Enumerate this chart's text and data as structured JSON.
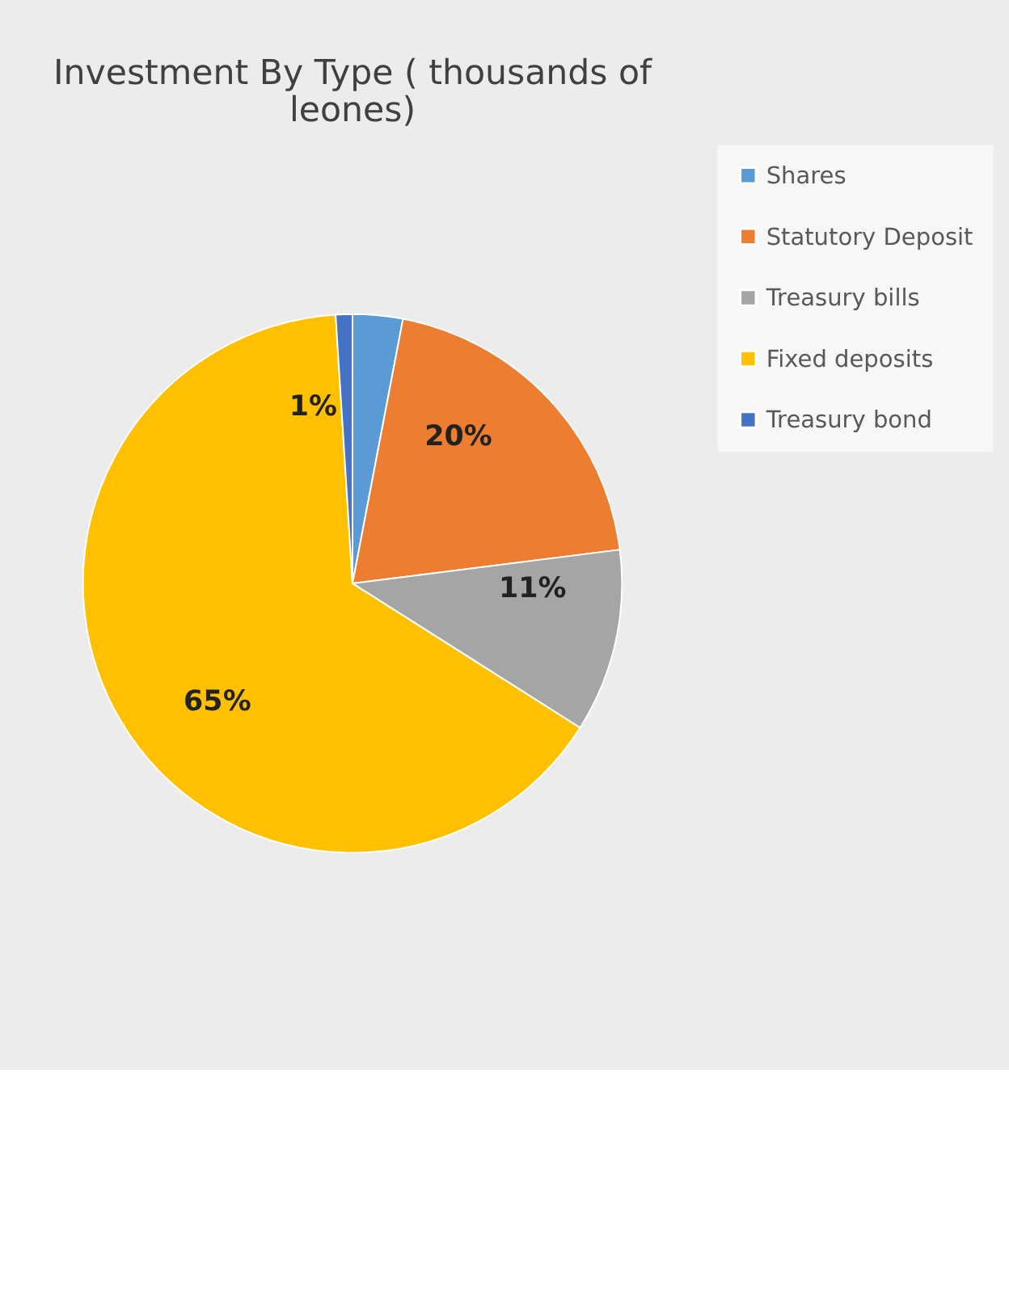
{
  "chart_data": {
    "type": "pie",
    "title": "Investment By Type ( thousands of leones)",
    "categories": [
      "Shares",
      "Statutory Deposit",
      "Treasury bills",
      "Fixed deposits",
      "Treasury bond"
    ],
    "values": [
      3,
      20,
      11,
      65,
      1
    ],
    "colors": [
      "#5b9bd5",
      "#ed7d31",
      "#a5a5a5",
      "#ffc000",
      "#4472c4"
    ],
    "value_labels": [
      null,
      "20%",
      "11%",
      "65%",
      "1%"
    ],
    "legend": "right"
  }
}
